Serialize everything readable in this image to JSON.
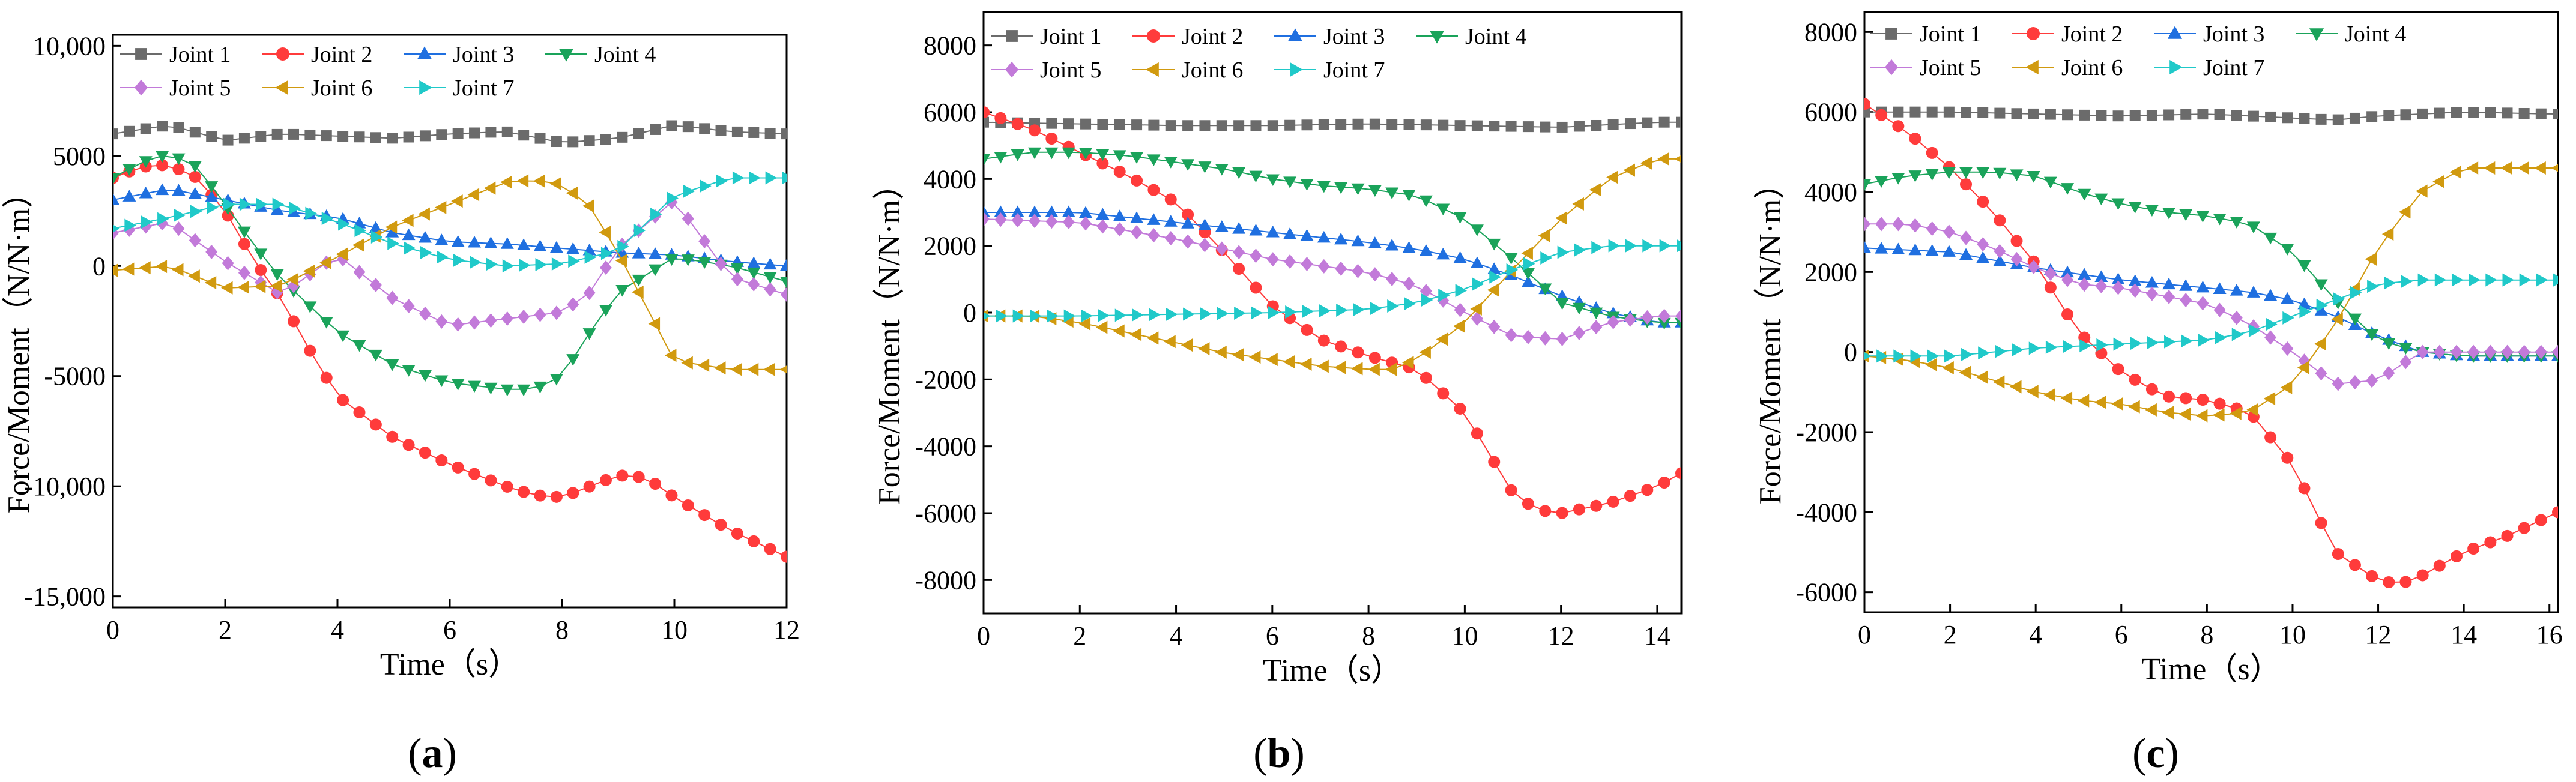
{
  "series_style": [
    {
      "name": "Joint 1",
      "color": "#6b6b6b",
      "marker": "square"
    },
    {
      "name": "Joint 2",
      "color": "#ff3b3b",
      "marker": "circle"
    },
    {
      "name": "Joint 3",
      "color": "#1f6fe0",
      "marker": "triangle-up"
    },
    {
      "name": "Joint 4",
      "color": "#1aa35a",
      "marker": "triangle-down"
    },
    {
      "name": "Joint 5",
      "color": "#c27ad9",
      "marker": "diamond"
    },
    {
      "name": "Joint 6",
      "color": "#d19a0f",
      "marker": "triangle-left"
    },
    {
      "name": "Joint 7",
      "color": "#20c9c9",
      "marker": "triangle-right"
    }
  ],
  "chart_data": [
    {
      "type": "line",
      "panel_label": [
        "(",
        "a",
        ")"
      ],
      "xlabel": "Time（s）",
      "ylabel": "Force/Moment（N/N·m）",
      "xlim": [
        0,
        12
      ],
      "ylim": [
        -15500,
        10500
      ],
      "xticks": [
        "0",
        "2",
        "4",
        "6",
        "8",
        "10",
        "12"
      ],
      "xtick_values": [
        0,
        2,
        4,
        6,
        8,
        10,
        12
      ],
      "yticks": [
        "10,000",
        "5000",
        "0",
        "-5000",
        "-10,000",
        "-15,000"
      ],
      "ytick_values": [
        10000,
        5000,
        0,
        -5000,
        -10000,
        -15000
      ],
      "legend_position": "top",
      "series": [
        {
          "name": "Joint 1",
          "x": [
            0,
            1,
            2,
            3,
            4,
            5,
            6,
            7,
            8,
            9,
            10,
            11,
            12
          ],
          "values": [
            6000,
            6400,
            5700,
            6000,
            5900,
            5800,
            6000,
            6100,
            5600,
            5800,
            6400,
            6100,
            6000
          ]
        },
        {
          "name": "Joint 2",
          "x": [
            0,
            0.5,
            1,
            1.5,
            2,
            2.5,
            3,
            3.5,
            4,
            5,
            6,
            7,
            7.5,
            8,
            8.5,
            9,
            9.5,
            10,
            11,
            12
          ],
          "values": [
            4000,
            4500,
            4600,
            4000,
            2500,
            300,
            -1500,
            -3800,
            -5900,
            -7800,
            -9000,
            -10000,
            -10400,
            -10500,
            -10000,
            -9500,
            -9600,
            -10500,
            -12000,
            -13200
          ]
        },
        {
          "name": "Joint 3",
          "x": [
            0,
            1,
            2,
            3,
            4,
            5,
            6,
            7,
            8,
            9,
            10,
            11,
            12
          ],
          "values": [
            3000,
            3500,
            3000,
            2500,
            2200,
            1500,
            1100,
            1000,
            800,
            600,
            500,
            200,
            0
          ]
        },
        {
          "name": "Joint 4",
          "x": [
            0,
            0.5,
            1,
            1.5,
            2,
            2.5,
            3,
            4,
            5,
            6,
            7,
            7.5,
            8,
            8.5,
            9,
            10,
            11,
            12
          ],
          "values": [
            4000,
            4700,
            5100,
            4500,
            2800,
            1000,
            -600,
            -3000,
            -4500,
            -5300,
            -5600,
            -5600,
            -5000,
            -3000,
            -1200,
            400,
            0,
            -700
          ]
        },
        {
          "name": "Joint 5",
          "x": [
            0,
            1,
            2,
            3,
            4,
            5,
            6,
            7,
            8,
            8.5,
            9,
            10,
            11,
            12
          ],
          "values": [
            1500,
            2000,
            200,
            -1300,
            500,
            -1500,
            -2700,
            -2400,
            -2100,
            -1200,
            800,
            3000,
            -500,
            -1300
          ]
        },
        {
          "name": "Joint 6",
          "x": [
            0,
            1,
            2,
            3,
            4,
            5,
            6,
            7,
            7.5,
            8,
            8.5,
            9,
            10,
            11,
            12
          ],
          "values": [
            -200,
            0,
            -1000,
            -900,
            400,
            1800,
            2800,
            3800,
            3900,
            3700,
            2700,
            600,
            -4300,
            -4700,
            -4700
          ]
        },
        {
          "name": "Joint 7",
          "x": [
            0,
            1,
            2,
            3,
            4,
            5,
            6,
            7,
            8,
            9,
            10,
            11,
            12
          ],
          "values": [
            1700,
            2200,
            2800,
            2800,
            2000,
            1000,
            300,
            0,
            100,
            700,
            3200,
            4000,
            4000
          ]
        }
      ]
    },
    {
      "type": "line",
      "panel_label": [
        "(",
        "b",
        ")"
      ],
      "xlabel": "Time（s）",
      "ylabel": "Force/Moment（N/N·m）",
      "xlim": [
        0,
        14.5
      ],
      "ylim": [
        -9000,
        9000
      ],
      "xticks": [
        "0",
        "2",
        "4",
        "6",
        "8",
        "10",
        "12",
        "14"
      ],
      "xtick_values": [
        0,
        2,
        4,
        6,
        8,
        10,
        12,
        14
      ],
      "yticks": [
        "8000",
        "6000",
        "4000",
        "2000",
        "0",
        "-2000",
        "-4000",
        "-6000",
        "-8000"
      ],
      "ytick_values": [
        8000,
        6000,
        4000,
        2000,
        0,
        -2000,
        -4000,
        -6000,
        -8000
      ],
      "legend_position": "top",
      "series": [
        {
          "name": "Joint 1",
          "x": [
            0,
            2,
            4,
            6,
            8,
            10,
            12,
            14,
            14.5
          ],
          "values": [
            5700,
            5650,
            5600,
            5600,
            5650,
            5600,
            5550,
            5700,
            5700
          ]
        },
        {
          "name": "Joint 2",
          "x": [
            0,
            1,
            2,
            3,
            4,
            5,
            6,
            7,
            8,
            9,
            10,
            11,
            11.5,
            12,
            13,
            14,
            14.5
          ],
          "values": [
            6000,
            5500,
            4800,
            4100,
            3300,
            1800,
            200,
            -800,
            -1300,
            -1700,
            -3000,
            -5400,
            -5900,
            -6000,
            -5700,
            -5200,
            -4800
          ]
        },
        {
          "name": "Joint 3",
          "x": [
            0,
            2,
            4,
            6,
            8,
            9,
            10,
            11,
            12,
            13,
            14,
            14.5
          ],
          "values": [
            3000,
            3000,
            2700,
            2400,
            2100,
            1900,
            1600,
            1100,
            500,
            0,
            -300,
            -300
          ]
        },
        {
          "name": "Joint 4",
          "x": [
            0,
            1,
            2,
            3,
            4,
            5,
            6,
            7,
            8,
            9,
            10,
            11,
            12,
            13,
            14,
            14.5
          ],
          "values": [
            4600,
            4800,
            4800,
            4700,
            4500,
            4300,
            4000,
            3800,
            3700,
            3500,
            2800,
            1600,
            300,
            -100,
            -300,
            -300
          ]
        },
        {
          "name": "Joint 5",
          "x": [
            0,
            2,
            4,
            6,
            8,
            9,
            10,
            11,
            12,
            13,
            14,
            14.5
          ],
          "values": [
            2800,
            2700,
            2200,
            1600,
            1200,
            800,
            0,
            -700,
            -800,
            -300,
            -100,
            -100
          ]
        },
        {
          "name": "Joint 6",
          "x": [
            0,
            1,
            2,
            3,
            4,
            5,
            6,
            7,
            8,
            8.5,
            9,
            10,
            11,
            12,
            13,
            14,
            14.5
          ],
          "values": [
            -100,
            -100,
            -300,
            -600,
            -900,
            -1200,
            -1400,
            -1600,
            -1700,
            -1700,
            -1400,
            -300,
            1300,
            2800,
            4000,
            4600,
            4600
          ]
        },
        {
          "name": "Joint 7",
          "x": [
            0,
            2,
            4,
            6,
            8,
            9,
            10,
            11,
            12,
            13,
            14,
            14.5
          ],
          "values": [
            -100,
            -100,
            -50,
            0,
            100,
            300,
            700,
            1300,
            1800,
            2000,
            2000,
            2000
          ]
        }
      ]
    },
    {
      "type": "line",
      "panel_label": [
        "(",
        "c",
        ")"
      ],
      "xlabel": "Time（s）",
      "ylabel": "Force/Moment（N/N·m）",
      "xlim": [
        0,
        16.2
      ],
      "ylim": [
        -6500,
        8500
      ],
      "xticks": [
        "0",
        "2",
        "4",
        "6",
        "8",
        "10",
        "12",
        "14",
        "16"
      ],
      "xtick_values": [
        0,
        2,
        4,
        6,
        8,
        10,
        12,
        14,
        16
      ],
      "yticks": [
        "8000",
        "6000",
        "4000",
        "2000",
        "0",
        "-2000",
        "-4000",
        "-6000"
      ],
      "ytick_values": [
        8000,
        6000,
        4000,
        2000,
        0,
        -2000,
        -4000,
        -6000
      ],
      "legend_position": "top",
      "series": [
        {
          "name": "Joint 1",
          "x": [
            0,
            2,
            4,
            6,
            8,
            10,
            11,
            12,
            14,
            16,
            16.2
          ],
          "values": [
            6000,
            6000,
            5950,
            5900,
            5950,
            5850,
            5800,
            5900,
            6000,
            5950,
            5950
          ]
        },
        {
          "name": "Joint 2",
          "x": [
            0,
            1,
            2,
            3,
            4,
            5,
            6,
            7,
            8,
            9,
            10,
            11,
            12,
            12.5,
            13,
            14,
            15,
            16,
            16.2
          ],
          "values": [
            6200,
            5500,
            4600,
            3500,
            2200,
            500,
            -500,
            -1100,
            -1200,
            -1500,
            -2800,
            -5000,
            -5700,
            -5800,
            -5600,
            -5000,
            -4600,
            -4100,
            -4000
          ]
        },
        {
          "name": "Joint 3",
          "x": [
            0,
            2,
            4,
            6,
            8,
            9,
            10,
            11,
            12,
            13,
            14,
            16,
            16.2
          ],
          "values": [
            2600,
            2500,
            2100,
            1800,
            1600,
            1500,
            1300,
            900,
            400,
            0,
            -100,
            -100,
            -100
          ]
        },
        {
          "name": "Joint 4",
          "x": [
            0,
            1,
            2,
            3,
            4,
            5,
            6,
            7,
            8,
            9,
            10,
            11,
            12,
            13,
            14,
            16,
            16.2
          ],
          "values": [
            4200,
            4400,
            4500,
            4500,
            4400,
            4000,
            3700,
            3500,
            3400,
            3200,
            2500,
            1300,
            300,
            0,
            -100,
            -100,
            -100
          ]
        },
        {
          "name": "Joint 5",
          "x": [
            0,
            1,
            2,
            3,
            4,
            5,
            6,
            7,
            8,
            9,
            10,
            11,
            12,
            13,
            14,
            16,
            16.2
          ],
          "values": [
            3200,
            3200,
            3000,
            2600,
            2100,
            1700,
            1600,
            1400,
            1200,
            700,
            0,
            -800,
            -700,
            0,
            0,
            0,
            0
          ]
        },
        {
          "name": "Joint 6",
          "x": [
            0,
            1,
            2,
            3,
            4,
            5,
            6,
            7,
            8,
            9,
            10,
            11,
            12,
            13,
            14,
            16,
            16.2
          ],
          "values": [
            -100,
            -200,
            -400,
            -700,
            -1000,
            -1200,
            -1300,
            -1500,
            -1600,
            -1500,
            -800,
            700,
            2600,
            4000,
            4600,
            4600,
            4600
          ]
        },
        {
          "name": "Joint 7",
          "x": [
            0,
            2,
            4,
            6,
            8,
            9,
            10,
            11,
            12,
            13,
            14,
            16,
            16.2
          ],
          "values": [
            -100,
            -100,
            100,
            200,
            300,
            500,
            900,
            1300,
            1700,
            1800,
            1800,
            1800,
            1800
          ]
        }
      ]
    }
  ]
}
